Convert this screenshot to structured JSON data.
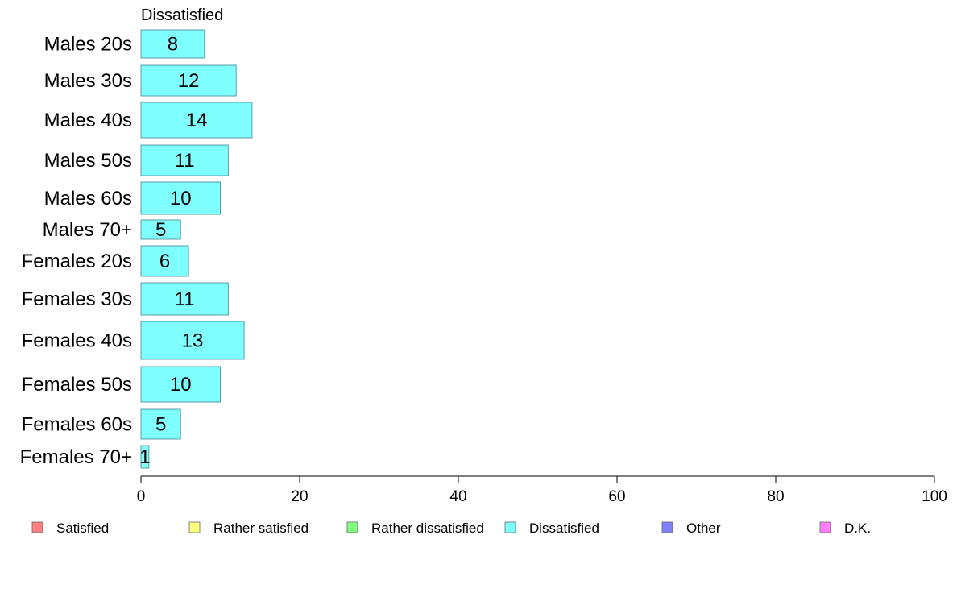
{
  "chart_data": {
    "type": "bar",
    "orientation": "horizontal",
    "title": "Dissatisfied",
    "categories": [
      "Males 20s",
      "Males 30s",
      "Males 40s",
      "Males 50s",
      "Males 60s",
      "Males 70+",
      "Females 20s",
      "Females 30s",
      "Females 40s",
      "Females 50s",
      "Females 60s",
      "Females 70+"
    ],
    "series": [
      {
        "name": "Dissatisfied",
        "values": [
          8,
          12,
          14,
          11,
          10,
          5,
          6,
          11,
          13,
          10,
          5,
          1
        ],
        "color": "#80ffff"
      }
    ],
    "xlim": [
      0,
      100
    ],
    "xticks": [
      0,
      20,
      40,
      60,
      80,
      100
    ],
    "xlabel": "",
    "ylabel": "",
    "grid": false,
    "legend": {
      "placement": "bottom",
      "entries": [
        {
          "name": "Satisfied",
          "color": "#ff8080"
        },
        {
          "name": "Rather satisfied",
          "color": "#ffff80"
        },
        {
          "name": "Rather dissatisfied",
          "color": "#80ff80"
        },
        {
          "name": "Dissatisfied",
          "color": "#80ffff"
        },
        {
          "name": "Other",
          "color": "#8080ff"
        },
        {
          "name": "D.K.",
          "color": "#ff80ff"
        }
      ]
    }
  }
}
